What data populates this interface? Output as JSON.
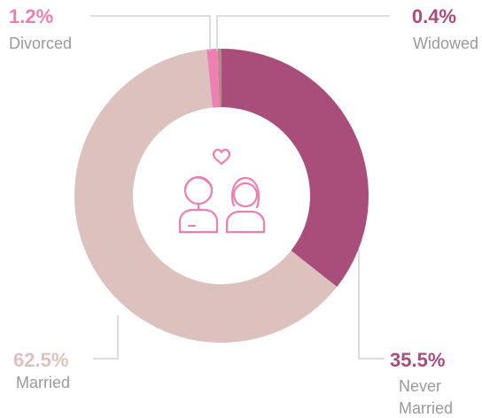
{
  "chart_data": {
    "type": "pie",
    "categories": [
      "Never Married",
      "Married",
      "Divorced",
      "Widowed"
    ],
    "values": [
      35.5,
      62.5,
      1.2,
      0.4
    ],
    "value_labels": [
      "35.5%",
      "62.5%",
      "1.2%",
      "0.4%"
    ],
    "colors": [
      "#a94d7b",
      "#dcc1bf",
      "#ee7fb1",
      "#b8858f"
    ],
    "donut": true
  }
}
